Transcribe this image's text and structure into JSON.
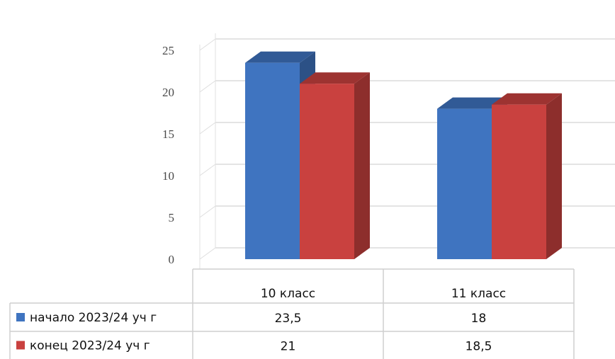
{
  "chart_data": {
    "type": "bar",
    "categories": [
      "10 класс",
      "11 класс"
    ],
    "series": [
      {
        "name": "начало 2023/24 уч г",
        "values": [
          23.5,
          18
        ],
        "labels": [
          "23,5",
          "18"
        ],
        "color": "#3f74c0"
      },
      {
        "name": "конец 2023/24 уч г",
        "values": [
          21,
          18.5
        ],
        "labels": [
          "21",
          "18,5"
        ],
        "color": "#c9413f"
      }
    ],
    "ylim": [
      0,
      25
    ],
    "yticks": [
      "0",
      "5",
      "10",
      "15",
      "20",
      "25"
    ],
    "grid": true,
    "legend": "data-table-left",
    "title": "",
    "xlabel": "",
    "ylabel": ""
  }
}
